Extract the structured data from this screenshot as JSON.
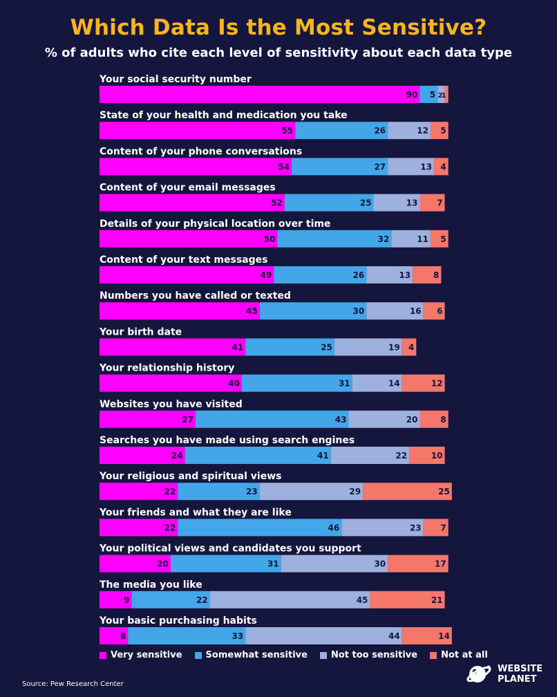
{
  "header": {
    "title": "Which Data Is the Most Sensitive?",
    "subtitle": "% of adults who cite each level of sensitivity about each data type"
  },
  "source": "Source: Pew Research Center",
  "brand": {
    "line1": "WEBSITE",
    "line2": "PLANET",
    "icon": "planet-logo-icon"
  },
  "colors": {
    "title": "#f8b51d",
    "background": "#15163d",
    "very": "#ff00ff",
    "somewhat": "#43a6e8",
    "not_too": "#9db0de",
    "not_at_all": "#f4776a"
  },
  "legend": [
    {
      "label": "Very sensitive"
    },
    {
      "label": "Somewhat sensitive"
    },
    {
      "label": "Not too sensitive"
    },
    {
      "label": "Not at all"
    }
  ],
  "chart_data": {
    "type": "bar",
    "orientation": "horizontal-stacked",
    "title": "Which Data Is the Most Sensitive?",
    "subtitle": "% of adults who cite each level of sensitivity about each data type",
    "categories": [
      "Your social security number",
      "State of your health and medication you take",
      "Content of your phone conversations",
      "Content of your email messages",
      "Details of your physical location over time",
      "Content of your text messages",
      "Numbers you have called or texted",
      "Your birth date",
      "Your relationship history",
      "Websites you have visited",
      "Searches you have made using search engines",
      "Your religious and spiritual views",
      "Your friends and what they are like",
      "Your political views and candidates you support",
      "The media you like",
      "Your basic purchasing habits"
    ],
    "series": [
      {
        "name": "Very sensitive",
        "color": "#ff00ff",
        "values": [
          90,
          55,
          54,
          52,
          50,
          49,
          45,
          41,
          40,
          27,
          24,
          22,
          22,
          20,
          9,
          8
        ]
      },
      {
        "name": "Somewhat sensitive",
        "color": "#43a6e8",
        "values": [
          5,
          26,
          27,
          25,
          32,
          26,
          30,
          25,
          31,
          43,
          41,
          23,
          46,
          31,
          22,
          33
        ]
      },
      {
        "name": "Not too sensitive",
        "color": "#9db0de",
        "values": [
          2,
          12,
          13,
          13,
          11,
          13,
          16,
          19,
          14,
          20,
          22,
          29,
          23,
          30,
          45,
          44
        ]
      },
      {
        "name": "Not at all",
        "color": "#f4776a",
        "values": [
          1,
          5,
          4,
          7,
          5,
          8,
          6,
          4,
          12,
          8,
          10,
          25,
          7,
          17,
          21,
          14
        ]
      }
    ],
    "xlim": [
      0,
      100
    ],
    "legend_position": "bottom",
    "grid": false
  }
}
